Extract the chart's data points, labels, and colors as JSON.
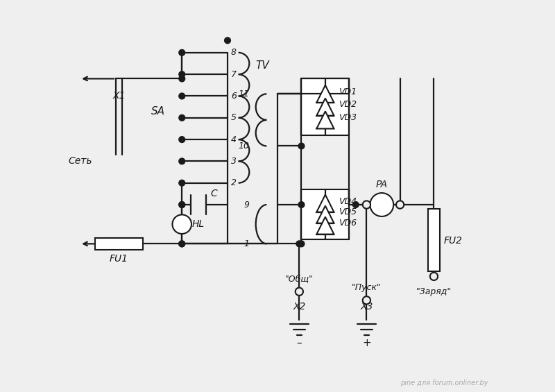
{
  "bg_color": "#efefef",
  "line_color": "#1a1a1a",
  "watermark": "pine для forum.onliner.by",
  "figsize": [
    8.0,
    5.65
  ],
  "dpi": 100,
  "xlim": [
    0,
    10
  ],
  "ylim": [
    0,
    9.0
  ]
}
